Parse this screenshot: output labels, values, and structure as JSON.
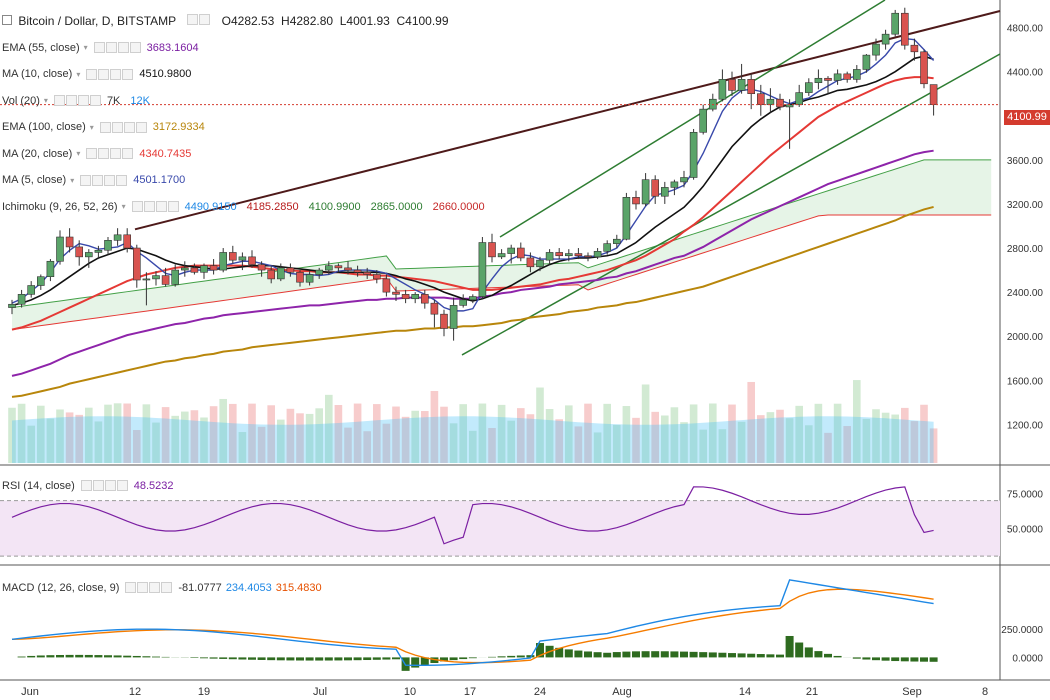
{
  "header": {
    "symbol": "Bitcoin / Dollar, D, BITSTAMP",
    "ohlc": {
      "open": "O4282.53",
      "high": "H4282.80",
      "low": "L4001.93",
      "close": "C4100.99"
    }
  },
  "indicators": [
    {
      "key": "ema55",
      "label": "EMA (55, close)",
      "values": [
        "3683.1604"
      ],
      "colors": [
        "#7b1fa2"
      ]
    },
    {
      "key": "ma10",
      "label": "MA (10, close)",
      "values": [
        "4510.9800"
      ],
      "colors": [
        "#111111"
      ]
    },
    {
      "key": "vol20",
      "label": "Vol (20)",
      "values": [
        "7K",
        "12K"
      ],
      "colors": [
        "#333333",
        "#1e88e5"
      ]
    },
    {
      "key": "ema100",
      "label": "EMA (100, close)",
      "values": [
        "3172.9334"
      ],
      "colors": [
        "#b8860b"
      ]
    },
    {
      "key": "ma20",
      "label": "MA (20, close)",
      "values": [
        "4340.7435"
      ],
      "colors": [
        "#e53935"
      ]
    },
    {
      "key": "ma5",
      "label": "MA (5, close)",
      "values": [
        "4501.1700"
      ],
      "colors": [
        "#3949ab"
      ]
    },
    {
      "key": "ichimoku",
      "label": "Ichimoku (9, 26, 52, 26)",
      "values": [
        "4490.9150",
        "4185.2850",
        "4100.9900",
        "2865.0000",
        "2660.0000"
      ],
      "colors": [
        "#1e88e5",
        "#b71c1c",
        "#2e7d32",
        "#2e7d32",
        "#c62828"
      ]
    }
  ],
  "price_tag": "4100.99",
  "rsi": {
    "label": "RSI (14, close)",
    "value": "48.5232"
  },
  "macd": {
    "label": "MACD (12, 26, close, 9)",
    "values": [
      "-81.0777",
      "234.4053",
      "315.4830"
    ],
    "colors": [
      "#333333",
      "#1e88e5",
      "#e65100"
    ]
  },
  "chart_data": {
    "type": "candlestick",
    "x_ticks": [
      "Jun",
      "12",
      "19",
      "Jul",
      "10",
      "17",
      "24",
      "Aug",
      "14",
      "21",
      "Sep",
      "8"
    ],
    "y_ticks": [
      "4800.00",
      "4400.00",
      "4000.00",
      "3600.00",
      "3200.00",
      "2800.00",
      "2400.00",
      "2000.00",
      "1600.00",
      "1200.00"
    ],
    "y_range": [
      850,
      5050
    ],
    "rsi_ticks": [
      "75.0000",
      "50.0000"
    ],
    "rsi_range": [
      25,
      95
    ],
    "macd_ticks": [
      "250.0000",
      "0.0000"
    ],
    "macd_range": [
      -200,
      800
    ],
    "last_price": 4100.99,
    "candles": [
      [
        2260,
        2330,
        2200,
        2290
      ],
      [
        2290,
        2420,
        2260,
        2380
      ],
      [
        2380,
        2500,
        2350,
        2460
      ],
      [
        2460,
        2560,
        2420,
        2540
      ],
      [
        2540,
        2700,
        2500,
        2680
      ],
      [
        2680,
        2960,
        2650,
        2900
      ],
      [
        2900,
        2980,
        2760,
        2810
      ],
      [
        2810,
        2870,
        2640,
        2720
      ],
      [
        2720,
        2790,
        2620,
        2760
      ],
      [
        2760,
        2820,
        2700,
        2780
      ],
      [
        2780,
        2900,
        2740,
        2870
      ],
      [
        2870,
        2980,
        2820,
        2920
      ],
      [
        2920,
        2980,
        2760,
        2800
      ],
      [
        2800,
        2830,
        2440,
        2510
      ],
      [
        2510,
        2580,
        2280,
        2520
      ],
      [
        2520,
        2590,
        2460,
        2550
      ],
      [
        2550,
        2620,
        2450,
        2470
      ],
      [
        2470,
        2650,
        2450,
        2600
      ],
      [
        2600,
        2680,
        2540,
        2620
      ],
      [
        2620,
        2660,
        2560,
        2580
      ],
      [
        2580,
        2660,
        2520,
        2640
      ],
      [
        2640,
        2700,
        2560,
        2600
      ],
      [
        2600,
        2800,
        2580,
        2760
      ],
      [
        2760,
        2820,
        2660,
        2690
      ],
      [
        2690,
        2760,
        2600,
        2720
      ],
      [
        2720,
        2780,
        2620,
        2650
      ],
      [
        2650,
        2680,
        2540,
        2600
      ],
      [
        2600,
        2640,
        2480,
        2520
      ],
      [
        2520,
        2660,
        2500,
        2620
      ],
      [
        2620,
        2660,
        2540,
        2580
      ],
      [
        2580,
        2600,
        2450,
        2490
      ],
      [
        2490,
        2590,
        2460,
        2560
      ],
      [
        2560,
        2620,
        2520,
        2600
      ],
      [
        2600,
        2680,
        2560,
        2640
      ],
      [
        2640,
        2660,
        2580,
        2620
      ],
      [
        2620,
        2680,
        2560,
        2600
      ],
      [
        2600,
        2640,
        2540,
        2580
      ],
      [
        2580,
        2620,
        2520,
        2560
      ],
      [
        2560,
        2600,
        2480,
        2520
      ],
      [
        2520,
        2560,
        2360,
        2400
      ],
      [
        2400,
        2450,
        2320,
        2380
      ],
      [
        2380,
        2420,
        2300,
        2340
      ],
      [
        2340,
        2400,
        2300,
        2380
      ],
      [
        2380,
        2420,
        2250,
        2300
      ],
      [
        2300,
        2330,
        2080,
        2200
      ],
      [
        2200,
        2240,
        2000,
        2070
      ],
      [
        2070,
        2350,
        1960,
        2280
      ],
      [
        2280,
        2380,
        2260,
        2330
      ],
      [
        2330,
        2380,
        2300,
        2360
      ],
      [
        2360,
        2900,
        2340,
        2850
      ],
      [
        2850,
        2930,
        2670,
        2720
      ],
      [
        2720,
        2790,
        2700,
        2750
      ],
      [
        2750,
        2830,
        2660,
        2800
      ],
      [
        2800,
        2850,
        2680,
        2710
      ],
      [
        2710,
        2760,
        2580,
        2630
      ],
      [
        2630,
        2720,
        2590,
        2690
      ],
      [
        2690,
        2790,
        2650,
        2760
      ],
      [
        2760,
        2800,
        2700,
        2730
      ],
      [
        2730,
        2790,
        2680,
        2750
      ],
      [
        2750,
        2800,
        2700,
        2730
      ],
      [
        2730,
        2760,
        2680,
        2720
      ],
      [
        2720,
        2800,
        2700,
        2770
      ],
      [
        2770,
        2870,
        2740,
        2840
      ],
      [
        2840,
        2920,
        2800,
        2880
      ],
      [
        2880,
        3300,
        2870,
        3260
      ],
      [
        3260,
        3320,
        3150,
        3200
      ],
      [
        3200,
        3480,
        3180,
        3420
      ],
      [
        3420,
        3460,
        3200,
        3270
      ],
      [
        3270,
        3400,
        3200,
        3350
      ],
      [
        3350,
        3420,
        3280,
        3400
      ],
      [
        3400,
        3500,
        3350,
        3440
      ],
      [
        3440,
        3880,
        3420,
        3850
      ],
      [
        3850,
        4100,
        3830,
        4060
      ],
      [
        4060,
        4200,
        4040,
        4150
      ],
      [
        4150,
        4420,
        4130,
        4330
      ],
      [
        4330,
        4400,
        4180,
        4230
      ],
      [
        4230,
        4470,
        4200,
        4330
      ],
      [
        4330,
        4380,
        4060,
        4200
      ],
      [
        4200,
        4280,
        4000,
        4100
      ],
      [
        4100,
        4250,
        4030,
        4150
      ],
      [
        4150,
        4200,
        4050,
        4080
      ],
      [
        4080,
        4150,
        3700,
        4100
      ],
      [
        4100,
        4280,
        4080,
        4210
      ],
      [
        4210,
        4340,
        4180,
        4300
      ],
      [
        4300,
        4420,
        4240,
        4340
      ],
      [
        4340,
        4360,
        4200,
        4320
      ],
      [
        4320,
        4420,
        4280,
        4380
      ],
      [
        4380,
        4400,
        4300,
        4330
      ],
      [
        4330,
        4460,
        4300,
        4420
      ],
      [
        4420,
        4560,
        4390,
        4550
      ],
      [
        4550,
        4700,
        4500,
        4650
      ],
      [
        4650,
        4780,
        4600,
        4740
      ],
      [
        4740,
        4960,
        4720,
        4930
      ],
      [
        4930,
        4980,
        4600,
        4640
      ],
      [
        4640,
        4700,
        4500,
        4580
      ],
      [
        4580,
        4600,
        4250,
        4290
      ],
      [
        4282.53,
        4282.8,
        4001.93,
        4100.99
      ]
    ],
    "lines": {
      "ma5": [
        2300,
        2340,
        2410,
        2480,
        2580,
        2700,
        2780,
        2840,
        2820,
        2790,
        2800,
        2810,
        2850,
        2770,
        2710,
        2640,
        2570,
        2550,
        2580,
        2600,
        2600,
        2600,
        2640,
        2660,
        2680,
        2680,
        2660,
        2640,
        2600,
        2570,
        2560,
        2560,
        2550,
        2560,
        2590,
        2600,
        2600,
        2600,
        2590,
        2570,
        2520,
        2470,
        2420,
        2380,
        2330,
        2260,
        2230,
        2230,
        2250,
        2400,
        2520,
        2630,
        2700,
        2740,
        2730,
        2700,
        2700,
        2700,
        2700,
        2720,
        2720,
        2730,
        2760,
        2800,
        2920,
        3050,
        3180,
        3280,
        3300,
        3330,
        3370,
        3500,
        3660,
        3850,
        4040,
        4160,
        4230,
        4240,
        4220,
        4180,
        4140,
        4110,
        4140,
        4160,
        4220,
        4270,
        4320,
        4340,
        4360,
        4400,
        4470,
        4550,
        4660,
        4700,
        4690,
        4600,
        4501
      ],
      "ma10": [
        2280,
        2300,
        2330,
        2370,
        2420,
        2480,
        2540,
        2600,
        2660,
        2710,
        2740,
        2770,
        2800,
        2790,
        2760,
        2730,
        2690,
        2660,
        2640,
        2630,
        2620,
        2610,
        2610,
        2620,
        2630,
        2640,
        2640,
        2640,
        2630,
        2620,
        2610,
        2600,
        2590,
        2580,
        2580,
        2580,
        2580,
        2580,
        2580,
        2570,
        2550,
        2520,
        2500,
        2470,
        2440,
        2400,
        2370,
        2340,
        2320,
        2340,
        2370,
        2420,
        2460,
        2510,
        2560,
        2610,
        2650,
        2680,
        2700,
        2710,
        2710,
        2720,
        2730,
        2750,
        2800,
        2850,
        2920,
        2990,
        3050,
        3110,
        3170,
        3260,
        3360,
        3480,
        3600,
        3720,
        3810,
        3900,
        3970,
        4030,
        4080,
        4100,
        4120,
        4150,
        4170,
        4200,
        4230,
        4240,
        4260,
        4280,
        4310,
        4350,
        4400,
        4460,
        4520,
        4540,
        4511
      ],
      "ma20": [
        2060,
        2080,
        2110,
        2140,
        2180,
        2220,
        2260,
        2300,
        2340,
        2380,
        2420,
        2460,
        2500,
        2530,
        2560,
        2580,
        2600,
        2620,
        2630,
        2640,
        2640,
        2640,
        2640,
        2640,
        2640,
        2630,
        2620,
        2610,
        2600,
        2600,
        2590,
        2590,
        2580,
        2580,
        2580,
        2570,
        2560,
        2560,
        2550,
        2550,
        2540,
        2530,
        2520,
        2510,
        2500,
        2480,
        2460,
        2440,
        2420,
        2420,
        2420,
        2430,
        2440,
        2450,
        2460,
        2470,
        2490,
        2510,
        2520,
        2540,
        2560,
        2580,
        2600,
        2630,
        2660,
        2690,
        2730,
        2780,
        2830,
        2880,
        2950,
        3010,
        3080,
        3160,
        3240,
        3320,
        3400,
        3480,
        3560,
        3640,
        3710,
        3780,
        3850,
        3920,
        3990,
        4040,
        4090,
        4130,
        4170,
        4210,
        4250,
        4290,
        4320,
        4340,
        4350,
        4350,
        4340
      ],
      "ema55": [
        1640,
        1660,
        1690,
        1720,
        1750,
        1790,
        1830,
        1860,
        1890,
        1920,
        1950,
        1980,
        2010,
        2030,
        2050,
        2070,
        2090,
        2110,
        2120,
        2140,
        2160,
        2170,
        2190,
        2200,
        2210,
        2220,
        2230,
        2240,
        2250,
        2260,
        2270,
        2280,
        2280,
        2290,
        2300,
        2310,
        2320,
        2330,
        2330,
        2340,
        2340,
        2350,
        2350,
        2350,
        2350,
        2350,
        2340,
        2340,
        2340,
        2360,
        2370,
        2390,
        2400,
        2420,
        2430,
        2440,
        2450,
        2470,
        2480,
        2490,
        2500,
        2510,
        2530,
        2540,
        2570,
        2590,
        2620,
        2650,
        2680,
        2710,
        2730,
        2770,
        2810,
        2860,
        2910,
        2960,
        3010,
        3060,
        3100,
        3140,
        3180,
        3220,
        3260,
        3300,
        3340,
        3380,
        3410,
        3440,
        3470,
        3500,
        3530,
        3560,
        3590,
        3620,
        3650,
        3670,
        3683
      ],
      "ema100": [
        1450,
        1460,
        1480,
        1500,
        1520,
        1540,
        1570,
        1590,
        1610,
        1630,
        1650,
        1670,
        1690,
        1710,
        1730,
        1750,
        1770,
        1780,
        1800,
        1810,
        1830,
        1840,
        1860,
        1870,
        1880,
        1900,
        1910,
        1920,
        1930,
        1940,
        1950,
        1960,
        1970,
        1980,
        1990,
        2000,
        2010,
        2020,
        2030,
        2040,
        2050,
        2050,
        2060,
        2070,
        2070,
        2080,
        2080,
        2090,
        2090,
        2100,
        2110,
        2120,
        2140,
        2150,
        2170,
        2180,
        2190,
        2200,
        2220,
        2230,
        2240,
        2260,
        2270,
        2280,
        2300,
        2310,
        2330,
        2350,
        2370,
        2390,
        2410,
        2430,
        2450,
        2480,
        2510,
        2540,
        2570,
        2600,
        2630,
        2660,
        2690,
        2720,
        2750,
        2780,
        2810,
        2840,
        2870,
        2900,
        2930,
        2960,
        2990,
        3020,
        3050,
        3090,
        3120,
        3150,
        3173
      ]
    }
  }
}
